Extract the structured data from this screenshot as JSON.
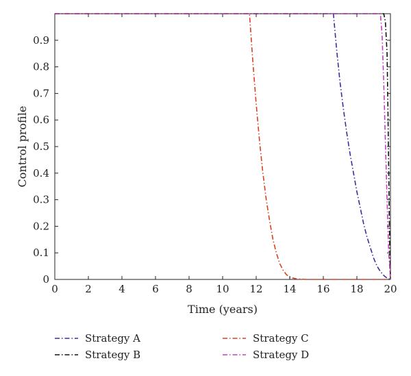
{
  "chart_data": {
    "type": "line",
    "xlabel": "Time (years)",
    "ylabel": "Control profile",
    "xlim": [
      0,
      20
    ],
    "ylim": [
      0,
      1
    ],
    "xticks": [
      "0",
      "2",
      "4",
      "6",
      "8",
      "10",
      "12",
      "14",
      "16",
      "18",
      "20"
    ],
    "yticks": [
      "0",
      "0.1",
      "0.2",
      "0.3",
      "0.4",
      "0.5",
      "0.6",
      "0.7",
      "0.8",
      "0.9"
    ],
    "grid": false,
    "legend_position": "bottom",
    "series": [
      {
        "name": "Strategy A",
        "color": "#3a2e9c",
        "dash": "dash-dot",
        "x": [
          0,
          16.6,
          16.8,
          17.0,
          17.2,
          17.4,
          17.6,
          17.8,
          18.0,
          18.2,
          18.4,
          18.6,
          18.8,
          19.0,
          19.2,
          19.4,
          19.6,
          19.8,
          20.0
        ],
        "y": [
          1.0,
          1.0,
          0.86,
          0.74,
          0.64,
          0.55,
          0.47,
          0.4,
          0.33,
          0.27,
          0.21,
          0.16,
          0.12,
          0.08,
          0.05,
          0.03,
          0.015,
          0.005,
          0.0
        ]
      },
      {
        "name": "Strategy B",
        "color": "#111111",
        "dash": "dash-dot",
        "x": [
          0,
          19.6,
          19.7,
          19.8,
          19.85,
          19.9,
          19.95,
          20.0
        ],
        "y": [
          1.0,
          1.0,
          0.97,
          0.85,
          0.65,
          0.4,
          0.15,
          0.0
        ]
      },
      {
        "name": "Strategy C",
        "color": "#d8401e",
        "dash": "dash-dot",
        "x": [
          0,
          11.6,
          11.8,
          12.0,
          12.2,
          12.4,
          12.6,
          12.8,
          13.0,
          13.2,
          13.4,
          13.6,
          13.8,
          14.0,
          14.4,
          15.0,
          16.0,
          18.0,
          20.0
        ],
        "y": [
          1.0,
          1.0,
          0.82,
          0.66,
          0.52,
          0.4,
          0.3,
          0.22,
          0.15,
          0.1,
          0.06,
          0.035,
          0.018,
          0.008,
          0.002,
          0.0,
          0.0,
          0.0,
          0.0
        ]
      },
      {
        "name": "Strategy D",
        "color": "#c43ec4",
        "dash": "dash-dot",
        "x": [
          0,
          19.4,
          19.5,
          19.6,
          19.7,
          19.8,
          19.9,
          20.0
        ],
        "y": [
          1.0,
          1.0,
          0.92,
          0.74,
          0.52,
          0.3,
          0.1,
          0.0
        ]
      }
    ]
  }
}
